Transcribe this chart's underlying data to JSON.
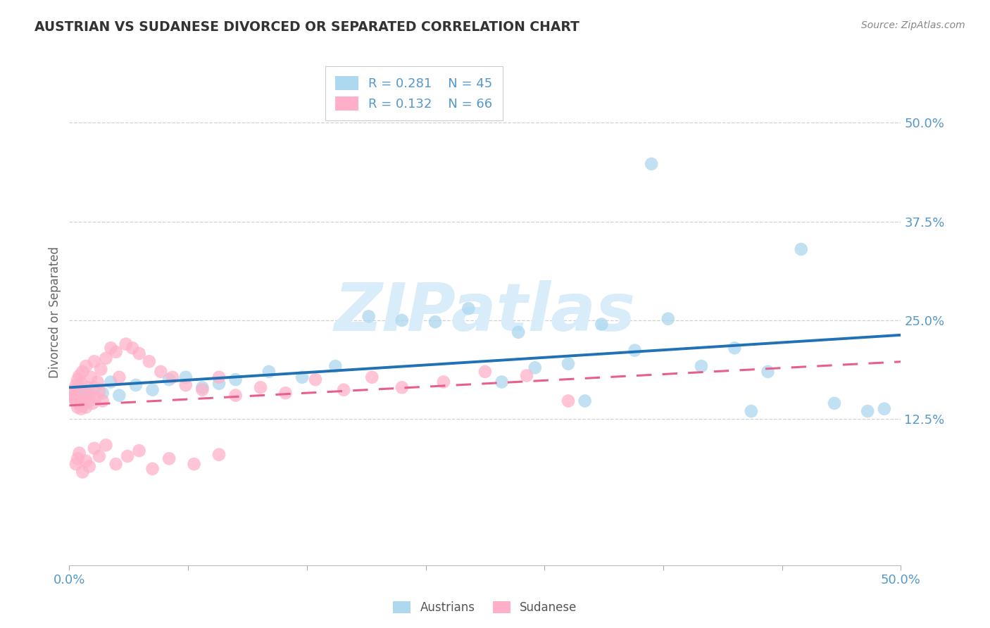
{
  "title": "AUSTRIAN VS SUDANESE DIVORCED OR SEPARATED CORRELATION CHART",
  "source": "Source: ZipAtlas.com",
  "ylabel": "Divorced or Separated",
  "color_austrian_face": "#ADD8F0",
  "color_sudanese_face": "#FFB0C8",
  "trendline_austrian": "#2171B5",
  "trendline_sudanese": "#E8608A",
  "background": "#FFFFFF",
  "watermark_text": "ZIPatlas",
  "watermark_color": "#D8ECFA",
  "grid_color": "#CCCCCC",
  "tick_label_color": "#5599CC",
  "title_color": "#333333",
  "legend_r1": "R = 0.281",
  "legend_n1": "N = 45",
  "legend_r2": "R = 0.132",
  "legend_n2": "N = 66",
  "bottom_label1": "Austrians",
  "bottom_label2": "Sudanese",
  "xlim": [
    0.0,
    0.5
  ],
  "ylim_low": -0.06,
  "ylim_high": 0.58,
  "yticks": [
    0.125,
    0.25,
    0.375,
    0.5
  ],
  "ytick_labels": [
    "12.5%",
    "25.0%",
    "37.5%",
    "50.0%"
  ],
  "austrian_x": [
    0.003,
    0.003,
    0.004,
    0.005,
    0.006,
    0.007,
    0.008,
    0.009,
    0.01,
    0.012,
    0.015,
    0.02,
    0.025,
    0.03,
    0.04,
    0.05,
    0.06,
    0.07,
    0.08,
    0.09,
    0.1,
    0.12,
    0.14,
    0.16,
    0.18,
    0.2,
    0.22,
    0.24,
    0.26,
    0.28,
    0.3,
    0.32,
    0.34,
    0.36,
    0.38,
    0.4,
    0.42,
    0.44,
    0.46,
    0.48,
    0.27,
    0.31,
    0.35,
    0.41,
    0.49
  ],
  "austrian_y": [
    0.15,
    0.155,
    0.148,
    0.152,
    0.145,
    0.158,
    0.142,
    0.16,
    0.155,
    0.148,
    0.165,
    0.158,
    0.172,
    0.155,
    0.168,
    0.162,
    0.175,
    0.178,
    0.165,
    0.17,
    0.175,
    0.185,
    0.178,
    0.192,
    0.255,
    0.25,
    0.248,
    0.265,
    0.172,
    0.19,
    0.195,
    0.245,
    0.212,
    0.252,
    0.192,
    0.215,
    0.185,
    0.34,
    0.145,
    0.135,
    0.235,
    0.148,
    0.448,
    0.135,
    0.138
  ],
  "sudanese_x": [
    0.002,
    0.003,
    0.003,
    0.004,
    0.004,
    0.005,
    0.005,
    0.006,
    0.006,
    0.007,
    0.007,
    0.008,
    0.008,
    0.009,
    0.01,
    0.01,
    0.011,
    0.012,
    0.013,
    0.014,
    0.015,
    0.016,
    0.017,
    0.018,
    0.019,
    0.02,
    0.022,
    0.025,
    0.028,
    0.03,
    0.034,
    0.038,
    0.042,
    0.048,
    0.055,
    0.062,
    0.07,
    0.08,
    0.09,
    0.1,
    0.115,
    0.13,
    0.148,
    0.165,
    0.182,
    0.2,
    0.225,
    0.25,
    0.275,
    0.3,
    0.004,
    0.005,
    0.006,
    0.008,
    0.01,
    0.012,
    0.015,
    0.018,
    0.022,
    0.028,
    0.035,
    0.042,
    0.05,
    0.06,
    0.075,
    0.09
  ],
  "sudanese_y": [
    0.155,
    0.152,
    0.162,
    0.148,
    0.168,
    0.14,
    0.175,
    0.145,
    0.18,
    0.138,
    0.17,
    0.155,
    0.185,
    0.148,
    0.192,
    0.14,
    0.165,
    0.155,
    0.178,
    0.145,
    0.198,
    0.152,
    0.172,
    0.16,
    0.188,
    0.148,
    0.202,
    0.215,
    0.21,
    0.178,
    0.22,
    0.215,
    0.208,
    0.198,
    0.185,
    0.178,
    0.168,
    0.162,
    0.178,
    0.155,
    0.165,
    0.158,
    0.175,
    0.162,
    0.178,
    0.165,
    0.172,
    0.185,
    0.18,
    0.148,
    0.068,
    0.075,
    0.082,
    0.058,
    0.072,
    0.065,
    0.088,
    0.078,
    0.092,
    0.068,
    0.078,
    0.085,
    0.062,
    0.075,
    0.068,
    0.08
  ]
}
